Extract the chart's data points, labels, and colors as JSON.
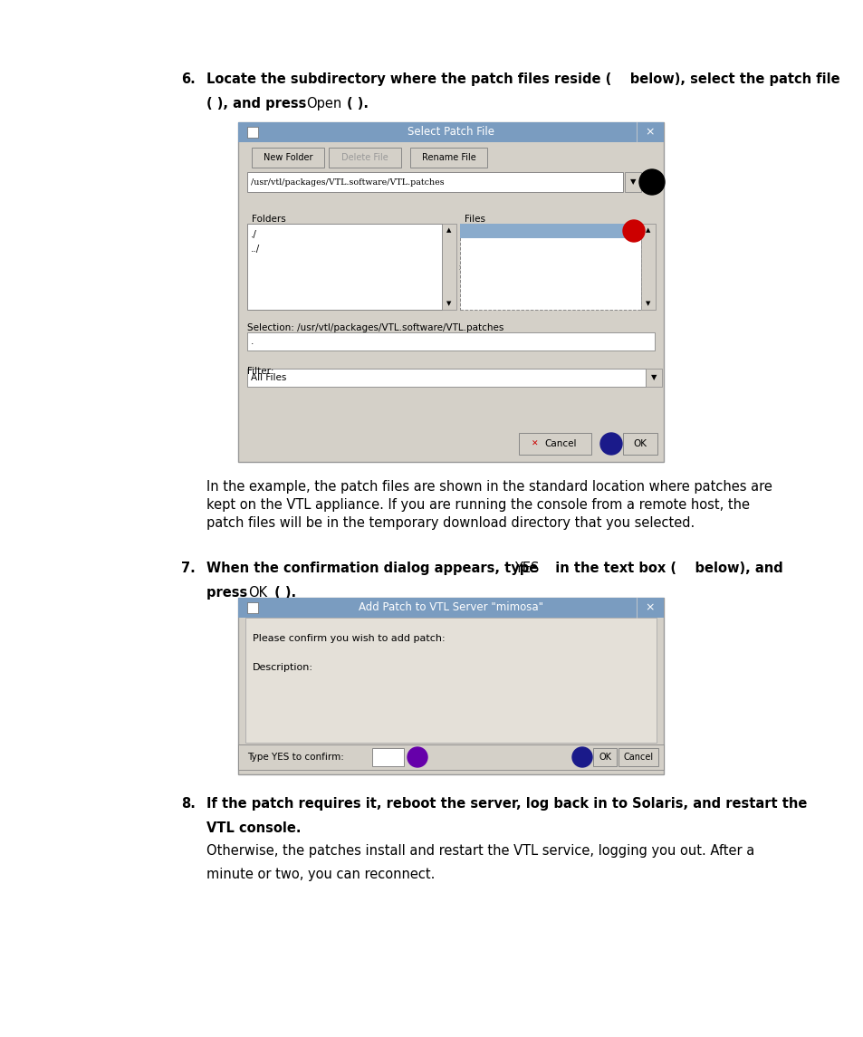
{
  "bg_color": "#ffffff",
  "page_width": 9.54,
  "page_height": 11.45,
  "text_color": "#000000",
  "para1_line1": "In the example, the patch files are shown in the standard location where patches are",
  "para1_line2": "kept on the VTL appliance. If you are running the console from a remote host, the",
  "para1_line3": "patch files will be in the temporary download directory that you selected.",
  "dialog1_title": "Select Patch File",
  "dialog1_title_bg": "#7a9cc0",
  "dialog1_bg": "#d4d0c8",
  "dialog1_path": "/usr/vtl/packages/VTL.software/VTL.patches",
  "dialog1_folders": [
    "./",
    "../"
  ],
  "dialog1_selection": "Selection: /usr/vtl/packages/VTL.software/VTL.patches",
  "dialog1_dot": ".",
  "dialog1_filter_label": "Filter:",
  "dialog1_filter_val": "All Files",
  "dialog2_title": "Add Patch to VTL Server \"mimosa\"",
  "dialog2_title_bg": "#7a9cc0",
  "dialog2_bg": "#d4d0c8",
  "dialog2_line1": "Please confirm you wish to add patch:",
  "dialog2_line2": "Description:",
  "dialog2_confirm": "Type YES to confirm:",
  "step8_body_line1": "Otherwise, the patches install and restart the VTL service, logging you out. After a",
  "step8_body_line2": "minute or two, you can reconnect."
}
